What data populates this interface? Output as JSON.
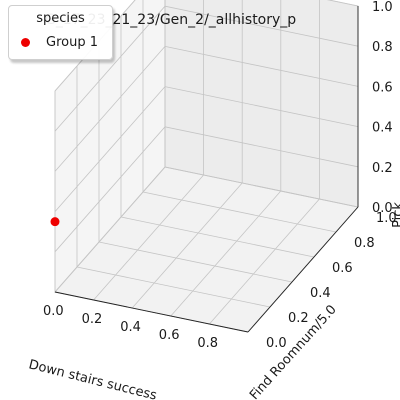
{
  "chart_data": {
    "type": "scatter",
    "projection": "3d",
    "title": "G_17_23_21_23/Gen_2/_allhistory_p",
    "xlabel": "Down stairs success",
    "ylabel": "Find Roomnum/5.0",
    "zlabel": "Pick",
    "xlim": [
      0,
      1
    ],
    "ylim": [
      0,
      1
    ],
    "zlim": [
      0,
      1
    ],
    "x_ticks": [
      "0.0",
      "0.2",
      "0.4",
      "0.6",
      "0.8"
    ],
    "y_ticks": [
      "0.0",
      "0.2",
      "0.4",
      "0.6",
      "0.8",
      "1.0"
    ],
    "z_ticks": [
      "0.0",
      "0.2",
      "0.4",
      "0.6",
      "0.8",
      "1.0"
    ],
    "grid": true,
    "legend": {
      "title": "species",
      "placement": "top-left"
    },
    "series": [
      {
        "name": "Group 1",
        "color": "#ee0000",
        "points": [
          {
            "x": 0.0,
            "y": 0.0,
            "z": 0.35
          }
        ]
      }
    ]
  }
}
